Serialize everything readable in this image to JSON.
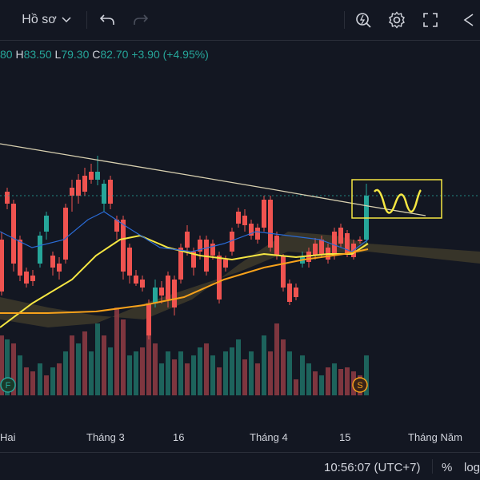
{
  "toolbar": {
    "profile_label": "Hồ sơ",
    "icons": [
      "chevron-down-icon",
      "undo-icon",
      "redo-icon",
      "quick-search-icon",
      "gear-icon",
      "fullscreen-icon",
      "snapshot-icon"
    ]
  },
  "legend": {
    "open_value": "80",
    "high_key": "H",
    "high_value": "83.50",
    "low_key": "L",
    "low_value": "79.30",
    "close_key": "C",
    "close_value": "82.70",
    "change": "+3.90 (+4.95%)"
  },
  "colors": {
    "up": "#26a69a",
    "down": "#ef5350",
    "ma_fast": "#f5e642",
    "ma_slow": "#f7a21b",
    "trend": "#d8d0b0",
    "cloud": "#3e3a2a",
    "background": "#131722"
  },
  "chart_data": {
    "type": "candlestick",
    "x_tick_labels": [
      "Hai",
      "Tháng 3",
      "16",
      "Tháng 4",
      "15",
      "Tháng Năm"
    ],
    "event_markers": [
      "F",
      "S"
    ],
    "annotation": "hand-drawn wave inside a yellow box at the latest candle"
  },
  "time_axis": {
    "labels": [
      "Hai",
      "Tháng 3",
      "16",
      "Tháng 4",
      "15",
      "Tháng Năm"
    ]
  },
  "status": {
    "clock": "10:56:07 (UTC+7)",
    "percent": "%",
    "log": "log"
  }
}
